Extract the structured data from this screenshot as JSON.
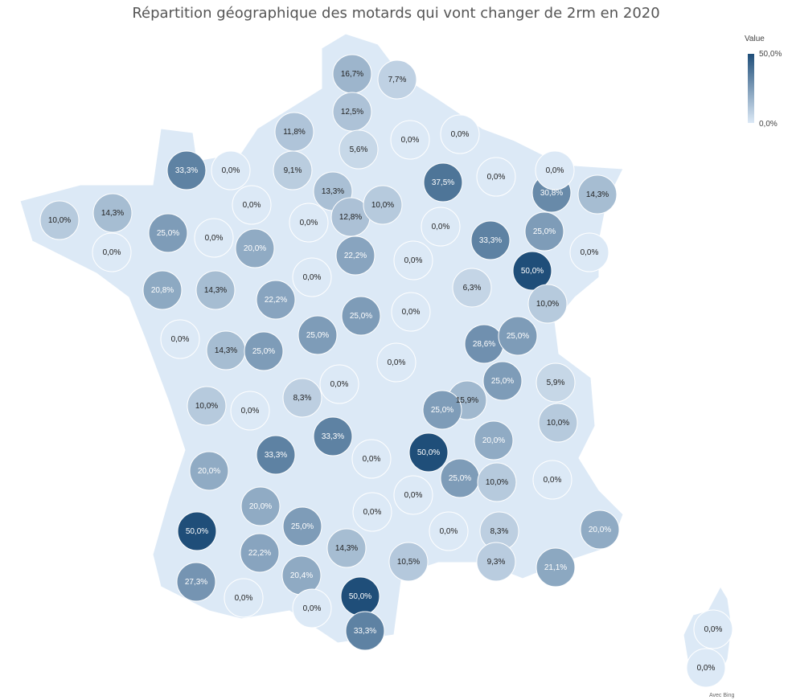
{
  "title": "Répartition géographique des motards qui vont changer de 2rm en 2020",
  "legend": {
    "title": "Value",
    "max_label": "50,0%",
    "min_label": "0,0%",
    "color_max": "#1f4e79",
    "color_min": "#dce9f6"
  },
  "attribution": "Avec Bing",
  "chart_data": {
    "type": "choropleth",
    "region": "France (départements)",
    "scale_min": 0,
    "scale_max": 50,
    "values": [
      {
        "label": "16,7%",
        "value": 16.7
      },
      {
        "label": "7,7%",
        "value": 7.7
      },
      {
        "label": "12,5%",
        "value": 12.5
      },
      {
        "label": "11,8%",
        "value": 11.8
      },
      {
        "label": "5,6%",
        "value": 5.6
      },
      {
        "label": "0,0%",
        "value": 0
      },
      {
        "label": "0,0%",
        "value": 0
      },
      {
        "label": "33,3%",
        "value": 33.3
      },
      {
        "label": "0,0%",
        "value": 0
      },
      {
        "label": "9,1%",
        "value": 9.1
      },
      {
        "label": "13,3%",
        "value": 13.3
      },
      {
        "label": "37,5%",
        "value": 37.5
      },
      {
        "label": "0,0%",
        "value": 0
      },
      {
        "label": "30,8%",
        "value": 30.8
      },
      {
        "label": "0,0%",
        "value": 0
      },
      {
        "label": "14,3%",
        "value": 14.3
      },
      {
        "label": "10,0%",
        "value": 10
      },
      {
        "label": "14,3%",
        "value": 14.3
      },
      {
        "label": "0,0%",
        "value": 0
      },
      {
        "label": "12,8%",
        "value": 12.8
      },
      {
        "label": "10,0%",
        "value": 10
      },
      {
        "label": "0,0%",
        "value": 0
      },
      {
        "label": "25,0%",
        "value": 25
      },
      {
        "label": "0,0%",
        "value": 0
      },
      {
        "label": "0,0%",
        "value": 0
      },
      {
        "label": "20,0%",
        "value": 20
      },
      {
        "label": "33,3%",
        "value": 33.3
      },
      {
        "label": "25,0%",
        "value": 25
      },
      {
        "label": "22,2%",
        "value": 22.2
      },
      {
        "label": "0,0%",
        "value": 0
      },
      {
        "label": "0,0%",
        "value": 0
      },
      {
        "label": "50,0%",
        "value": 50
      },
      {
        "label": "0,0%",
        "value": 0
      },
      {
        "label": "20,8%",
        "value": 20.8
      },
      {
        "label": "14,3%",
        "value": 14.3
      },
      {
        "label": "0,0%",
        "value": 0
      },
      {
        "label": "22,2%",
        "value": 22.2
      },
      {
        "label": "6,3%",
        "value": 6.3
      },
      {
        "label": "10,0%",
        "value": 10
      },
      {
        "label": "0,0%",
        "value": 0
      },
      {
        "label": "25,0%",
        "value": 25
      },
      {
        "label": "0,0%",
        "value": 0
      },
      {
        "label": "14,3%",
        "value": 14.3
      },
      {
        "label": "25,0%",
        "value": 25
      },
      {
        "label": "25,0%",
        "value": 25
      },
      {
        "label": "28,6%",
        "value": 28.6
      },
      {
        "label": "25,0%",
        "value": 25
      },
      {
        "label": "0,0%",
        "value": 0
      },
      {
        "label": "0,0%",
        "value": 0
      },
      {
        "label": "25,0%",
        "value": 25
      },
      {
        "label": "5,9%",
        "value": 5.9
      },
      {
        "label": "10,0%",
        "value": 10
      },
      {
        "label": "8,3%",
        "value": 8.3
      },
      {
        "label": "0,0%",
        "value": 0
      },
      {
        "label": "15,9%",
        "value": 15.9
      },
      {
        "label": "25,0%",
        "value": 25
      },
      {
        "label": "10,0%",
        "value": 10
      },
      {
        "label": "33,3%",
        "value": 33.3
      },
      {
        "label": "33,3%",
        "value": 33.3
      },
      {
        "label": "50,0%",
        "value": 50
      },
      {
        "label": "0,0%",
        "value": 0
      },
      {
        "label": "20,0%",
        "value": 20
      },
      {
        "label": "20,0%",
        "value": 20
      },
      {
        "label": "0,0%",
        "value": 0
      },
      {
        "label": "25,0%",
        "value": 25
      },
      {
        "label": "10,0%",
        "value": 10
      },
      {
        "label": "0,0%",
        "value": 0
      },
      {
        "label": "20,0%",
        "value": 20
      },
      {
        "label": "0,0%",
        "value": 0
      },
      {
        "label": "50,0%",
        "value": 50
      },
      {
        "label": "25,0%",
        "value": 25
      },
      {
        "label": "0,0%",
        "value": 0
      },
      {
        "label": "8,3%",
        "value": 8.3
      },
      {
        "label": "20,0%",
        "value": 20
      },
      {
        "label": "22,2%",
        "value": 22.2
      },
      {
        "label": "14,3%",
        "value": 14.3
      },
      {
        "label": "10,5%",
        "value": 10.5
      },
      {
        "label": "9,3%",
        "value": 9.3
      },
      {
        "label": "21,1%",
        "value": 21.1
      },
      {
        "label": "27,3%",
        "value": 27.3
      },
      {
        "label": "20,4%",
        "value": 20.4
      },
      {
        "label": "0,0%",
        "value": 0
      },
      {
        "label": "50,0%",
        "value": 50
      },
      {
        "label": "0,0%",
        "value": 0
      },
      {
        "label": "33,3%",
        "value": 33.3
      },
      {
        "label": "0,0%",
        "value": 0
      },
      {
        "label": "0,0%",
        "value": 0
      }
    ]
  }
}
